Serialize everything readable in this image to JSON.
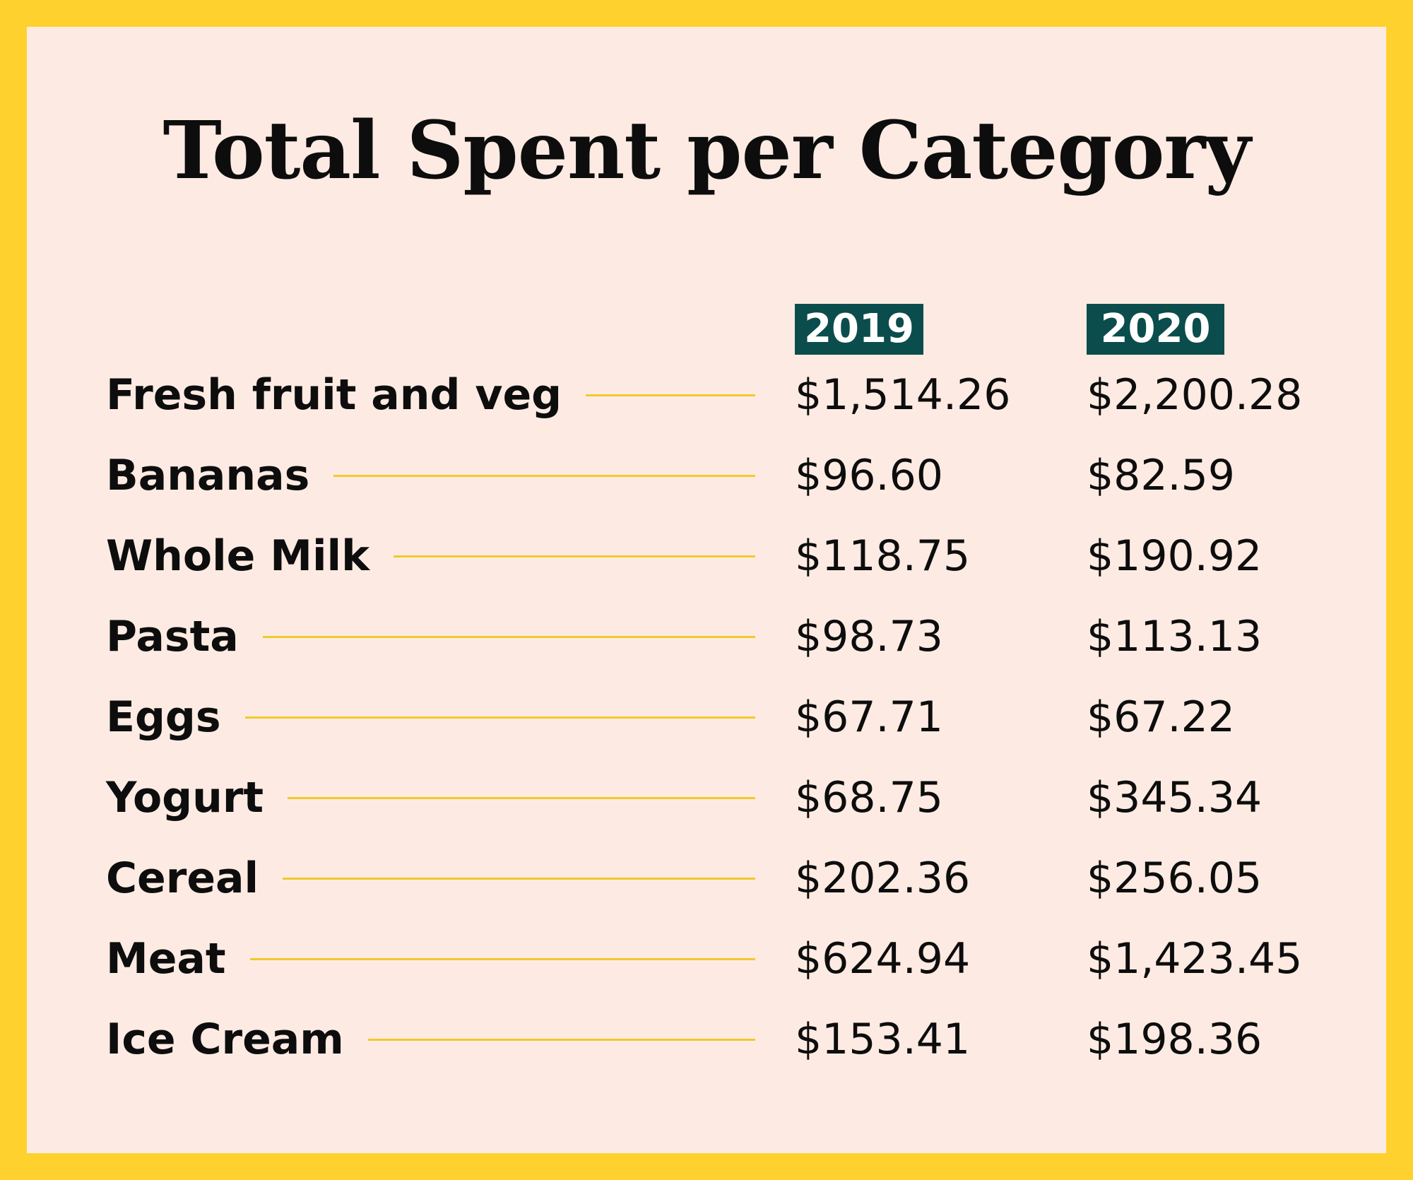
{
  "colors": {
    "border": "#FFD12E",
    "background": "#FDEBE3",
    "header_badge": "#0B4D4C",
    "leader_line": "#F2C92C",
    "text": "#0d0d0d"
  },
  "chart_data": {
    "type": "table",
    "title": "Total Spent per Category",
    "columns": [
      "2019",
      "2020"
    ],
    "rows": [
      {
        "category": "Fresh fruit and veg",
        "values": [
          "$1,514.26",
          "$2,200.28"
        ]
      },
      {
        "category": "Bananas",
        "values": [
          "$96.60",
          "$82.59"
        ]
      },
      {
        "category": "Whole Milk",
        "values": [
          "$118.75",
          "$190.92"
        ]
      },
      {
        "category": "Pasta",
        "values": [
          "$98.73",
          "$113.13"
        ]
      },
      {
        "category": "Eggs",
        "values": [
          "$67.71",
          "$67.22"
        ]
      },
      {
        "category": "Yogurt",
        "values": [
          "$68.75",
          "$345.34"
        ]
      },
      {
        "category": "Cereal",
        "values": [
          "$202.36",
          "$256.05"
        ]
      },
      {
        "category": "Meat",
        "values": [
          "$624.94",
          "$1,423.45"
        ]
      },
      {
        "category": "Ice Cream",
        "values": [
          "$153.41",
          "$198.36"
        ]
      }
    ]
  }
}
